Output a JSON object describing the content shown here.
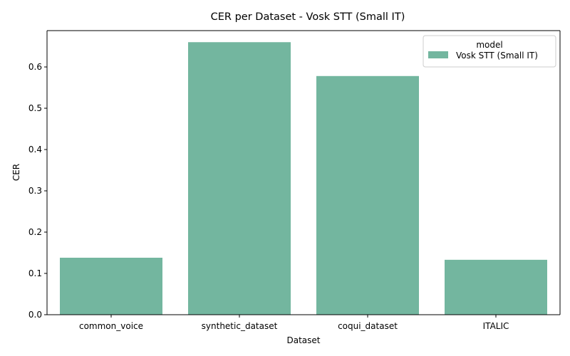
{
  "chart_data": {
    "type": "bar",
    "title": "CER per Dataset - Vosk STT (Small IT)",
    "xlabel": "Dataset",
    "ylabel": "CER",
    "categories": [
      "common_voice",
      "synthetic_dataset",
      "coqui_dataset",
      "ITALIC"
    ],
    "series": [
      {
        "name": "Vosk STT (Small IT)",
        "values": [
          0.138,
          0.66,
          0.578,
          0.133
        ],
        "color": "#73b69f"
      }
    ],
    "ylim": [
      0,
      0.688
    ],
    "yticks": [
      0.0,
      0.1,
      0.2,
      0.3,
      0.4,
      0.5,
      0.6
    ],
    "ytick_labels": [
      "0.0",
      "0.1",
      "0.2",
      "0.3",
      "0.4",
      "0.5",
      "0.6"
    ],
    "grid": false,
    "legend": {
      "title": "model",
      "placement": "top-right"
    }
  }
}
